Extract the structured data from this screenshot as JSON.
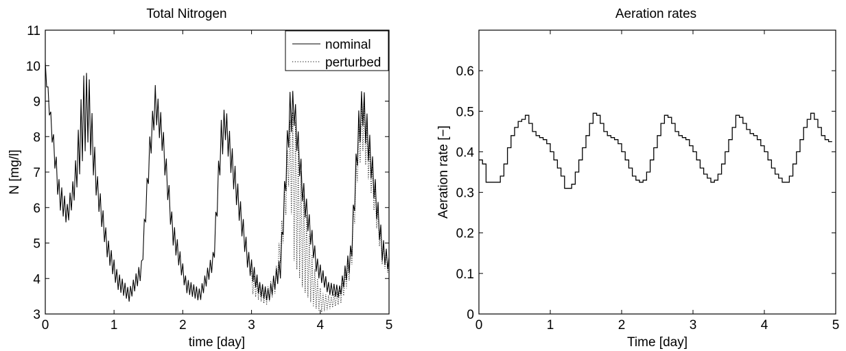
{
  "chart_data": [
    {
      "type": "line",
      "title": "Total Nitrogen",
      "xlabel": "time [day]",
      "ylabel": "N [mg/l]",
      "xlim": [
        0,
        5
      ],
      "ylim": [
        3,
        11
      ],
      "xticks": [
        0,
        1,
        2,
        3,
        4,
        5
      ],
      "yticks": [
        3,
        4,
        5,
        6,
        7,
        8,
        9,
        10,
        11
      ],
      "grid": false,
      "legend": "top-right",
      "series": [
        {
          "name": "nominal",
          "style": "solid",
          "envelope": [
            {
              "x": 0.0,
              "upper": 10.1,
              "lower": 9.8
            },
            {
              "x": 0.08,
              "upper": 8.7,
              "lower": 8.2
            },
            {
              "x": 0.2,
              "upper": 6.8,
              "lower": 6.0
            },
            {
              "x": 0.32,
              "upper": 6.1,
              "lower": 5.5
            },
            {
              "x": 0.42,
              "upper": 6.9,
              "lower": 6.2
            },
            {
              "x": 0.55,
              "upper": 9.7,
              "lower": 7.4
            },
            {
              "x": 0.63,
              "upper": 9.85,
              "lower": 7.9
            },
            {
              "x": 0.75,
              "upper": 7.0,
              "lower": 6.2
            },
            {
              "x": 0.9,
              "upper": 5.2,
              "lower": 4.6
            },
            {
              "x": 1.05,
              "upper": 4.2,
              "lower": 3.7
            },
            {
              "x": 1.22,
              "upper": 3.7,
              "lower": 3.35
            },
            {
              "x": 1.4,
              "upper": 4.5,
              "lower": 4.0
            },
            {
              "x": 1.52,
              "upper": 8.0,
              "lower": 7.2
            },
            {
              "x": 1.6,
              "upper": 9.45,
              "lower": 8.5
            },
            {
              "x": 1.7,
              "upper": 8.5,
              "lower": 7.6
            },
            {
              "x": 1.85,
              "upper": 5.7,
              "lower": 5.0
            },
            {
              "x": 2.05,
              "upper": 4.0,
              "lower": 3.6
            },
            {
              "x": 2.25,
              "upper": 3.7,
              "lower": 3.35
            },
            {
              "x": 2.45,
              "upper": 4.8,
              "lower": 4.3
            },
            {
              "x": 2.55,
              "upper": 8.4,
              "lower": 7.2
            },
            {
              "x": 2.62,
              "upper": 8.9,
              "lower": 7.9
            },
            {
              "x": 2.75,
              "upper": 7.3,
              "lower": 6.4
            },
            {
              "x": 2.95,
              "upper": 4.8,
              "lower": 4.2
            },
            {
              "x": 3.12,
              "upper": 3.9,
              "lower": 3.5
            },
            {
              "x": 3.25,
              "upper": 3.7,
              "lower": 3.35
            },
            {
              "x": 3.42,
              "upper": 4.6,
              "lower": 4.0
            },
            {
              "x": 3.55,
              "upper": 9.25,
              "lower": 8.0
            },
            {
              "x": 3.62,
              "upper": 9.3,
              "lower": 8.3
            },
            {
              "x": 3.75,
              "upper": 6.8,
              "lower": 6.0
            },
            {
              "x": 3.95,
              "upper": 4.6,
              "lower": 4.1
            },
            {
              "x": 4.12,
              "upper": 3.9,
              "lower": 3.55
            },
            {
              "x": 4.28,
              "upper": 3.8,
              "lower": 3.45
            },
            {
              "x": 4.45,
              "upper": 5.0,
              "lower": 4.3
            },
            {
              "x": 4.55,
              "upper": 8.6,
              "lower": 7.5
            },
            {
              "x": 4.62,
              "upper": 9.55,
              "lower": 8.3
            },
            {
              "x": 4.75,
              "upper": 7.6,
              "lower": 6.7
            },
            {
              "x": 4.9,
              "upper": 5.2,
              "lower": 4.5
            },
            {
              "x": 5.0,
              "upper": 4.6,
              "lower": 4.2
            }
          ]
        },
        {
          "name": "perturbed",
          "style": "dotted",
          "envelope": [
            {
              "x": 3.0,
              "upper": 4.2,
              "lower": 3.6
            },
            {
              "x": 3.1,
              "upper": 3.9,
              "lower": 3.4
            },
            {
              "x": 3.22,
              "upper": 3.7,
              "lower": 3.25
            },
            {
              "x": 3.35,
              "upper": 4.2,
              "lower": 3.6
            },
            {
              "x": 3.45,
              "upper": 5.8,
              "lower": 4.8
            },
            {
              "x": 3.55,
              "upper": 8.4,
              "lower": 6.8
            },
            {
              "x": 3.62,
              "upper": 8.8,
              "lower": 4.5
            },
            {
              "x": 3.75,
              "upper": 6.5,
              "lower": 3.7
            },
            {
              "x": 3.9,
              "upper": 4.4,
              "lower": 3.2
            },
            {
              "x": 4.02,
              "upper": 3.6,
              "lower": 3.05
            },
            {
              "x": 4.15,
              "upper": 3.5,
              "lower": 3.15
            },
            {
              "x": 4.3,
              "upper": 3.7,
              "lower": 3.3
            },
            {
              "x": 4.45,
              "upper": 5.0,
              "lower": 4.1
            },
            {
              "x": 4.55,
              "upper": 8.2,
              "lower": 7.0
            },
            {
              "x": 4.62,
              "upper": 9.3,
              "lower": 7.6
            },
            {
              "x": 4.75,
              "upper": 7.3,
              "lower": 6.3
            },
            {
              "x": 4.9,
              "upper": 5.1,
              "lower": 4.4
            },
            {
              "x": 5.0,
              "upper": 4.5,
              "lower": 4.1
            }
          ]
        }
      ]
    },
    {
      "type": "line",
      "title": "Aeration rates",
      "xlabel": "Time [day]",
      "ylabel": "Aeration rate [−]",
      "xlim": [
        0,
        5
      ],
      "ylim": [
        0,
        0.7
      ],
      "xticks": [
        0,
        1,
        2,
        3,
        4,
        5
      ],
      "yticks": [
        0,
        0.1,
        0.2,
        0.3,
        0.4,
        0.5,
        0.6
      ],
      "grid": false,
      "step": true,
      "series": [
        {
          "name": "",
          "x": [
            0,
            0.05,
            0.1,
            0.2,
            0.3,
            0.35,
            0.4,
            0.45,
            0.5,
            0.55,
            0.6,
            0.65,
            0.7,
            0.75,
            0.8,
            0.85,
            0.9,
            0.95,
            1.0,
            1.05,
            1.1,
            1.15,
            1.2,
            1.25,
            1.3,
            1.35,
            1.4,
            1.45,
            1.5,
            1.55,
            1.6,
            1.65,
            1.7,
            1.75,
            1.8,
            1.85,
            1.9,
            1.95,
            2.0,
            2.05,
            2.1,
            2.15,
            2.2,
            2.25,
            2.3,
            2.35,
            2.4,
            2.45,
            2.5,
            2.55,
            2.6,
            2.65,
            2.7,
            2.75,
            2.8,
            2.85,
            2.9,
            2.95,
            3.0,
            3.05,
            3.1,
            3.15,
            3.2,
            3.25,
            3.3,
            3.35,
            3.4,
            3.45,
            3.5,
            3.55,
            3.6,
            3.65,
            3.7,
            3.75,
            3.8,
            3.85,
            3.9,
            3.95,
            4.0,
            4.05,
            4.1,
            4.15,
            4.2,
            4.25,
            4.3,
            4.35,
            4.4,
            4.45,
            4.5,
            4.55,
            4.6,
            4.65,
            4.7,
            4.75,
            4.8,
            4.85,
            4.9
          ],
          "y": [
            0.38,
            0.37,
            0.325,
            0.325,
            0.34,
            0.37,
            0.41,
            0.44,
            0.46,
            0.475,
            0.48,
            0.49,
            0.47,
            0.45,
            0.44,
            0.435,
            0.43,
            0.42,
            0.4,
            0.38,
            0.36,
            0.34,
            0.31,
            0.31,
            0.32,
            0.35,
            0.38,
            0.41,
            0.44,
            0.47,
            0.495,
            0.49,
            0.47,
            0.45,
            0.44,
            0.435,
            0.43,
            0.42,
            0.4,
            0.38,
            0.36,
            0.34,
            0.33,
            0.325,
            0.33,
            0.35,
            0.38,
            0.41,
            0.44,
            0.47,
            0.49,
            0.485,
            0.47,
            0.45,
            0.44,
            0.435,
            0.43,
            0.415,
            0.4,
            0.38,
            0.36,
            0.345,
            0.335,
            0.325,
            0.33,
            0.345,
            0.37,
            0.4,
            0.43,
            0.46,
            0.49,
            0.485,
            0.47,
            0.455,
            0.445,
            0.44,
            0.43,
            0.415,
            0.4,
            0.38,
            0.36,
            0.345,
            0.335,
            0.325,
            0.325,
            0.34,
            0.37,
            0.4,
            0.43,
            0.46,
            0.48,
            0.495,
            0.48,
            0.46,
            0.44,
            0.43,
            0.425
          ]
        }
      ]
    }
  ]
}
